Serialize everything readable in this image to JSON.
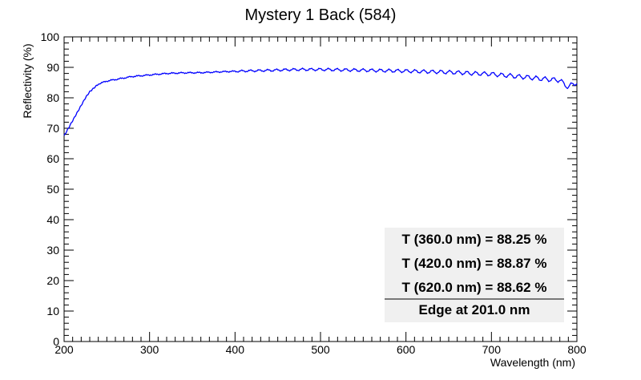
{
  "chart_data": {
    "type": "line",
    "title": "Mystery 1 Back (584)",
    "xlabel": "Wavelength (nm)",
    "ylabel": "Reflectivity (%)",
    "xlim": [
      200,
      800
    ],
    "ylim": [
      0,
      100
    ],
    "xticks": [
      "200",
      "300",
      "400",
      "500",
      "600",
      "700",
      "800"
    ],
    "yticks": [
      "0",
      "10",
      "20",
      "30",
      "40",
      "50",
      "60",
      "70",
      "80",
      "90",
      "100"
    ],
    "grid": false,
    "line_color": "#0000ff",
    "series": [
      {
        "x": [
          200,
          205,
          210,
          215,
          220,
          225,
          230,
          240,
          250,
          260,
          270,
          280,
          300,
          320,
          340,
          360,
          380,
          400,
          420,
          440,
          460,
          480,
          500,
          520,
          540,
          560,
          580,
          600,
          620,
          640,
          660,
          680,
          700,
          710,
          720,
          730,
          740,
          750,
          760,
          770,
          780,
          785,
          790,
          795,
          800
        ],
        "y": [
          67.5,
          70,
          72.5,
          75,
          77.5,
          80,
          82,
          84.5,
          85.5,
          86,
          86.5,
          87,
          87.5,
          88,
          88.2,
          88.25,
          88.5,
          88.7,
          88.87,
          89,
          89.2,
          89.3,
          89.3,
          89.2,
          89.1,
          89,
          88.9,
          88.8,
          88.62,
          88.5,
          88.3,
          88,
          87.8,
          87.5,
          87.3,
          87,
          86.8,
          86.5,
          86.2,
          86,
          85.8,
          84.5,
          83.5,
          84.5,
          85
        ]
      }
    ],
    "legend_position": "bottom-right",
    "annotations": [
      "T (360.0 nm) = 88.25 %",
      "T (420.0 nm) = 88.87 %",
      "T (620.0 nm) = 88.62 %",
      "Edge at 201.0 nm"
    ]
  }
}
